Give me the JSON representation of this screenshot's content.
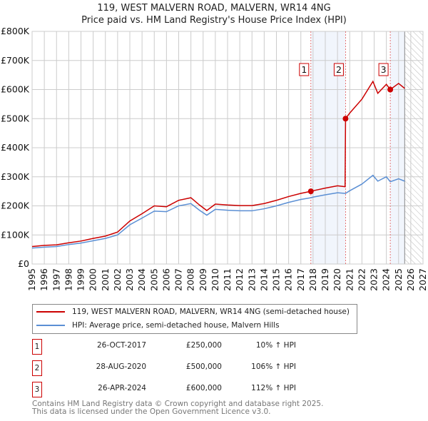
{
  "chart_data": {
    "type": "line",
    "title": "119, WEST MALVERN ROAD, MALVERN, WR14 4NG",
    "subtitle": "Price paid vs. HM Land Registry's House Price Index (HPI)",
    "xlim": [
      1995,
      2027
    ],
    "ylim": [
      0,
      800000
    ],
    "y_ticks": [
      {
        "v": 0,
        "label": "£0"
      },
      {
        "v": 100000,
        "label": "£100K"
      },
      {
        "v": 200000,
        "label": "£200K"
      },
      {
        "v": 300000,
        "label": "£300K"
      },
      {
        "v": 400000,
        "label": "£400K"
      },
      {
        "v": 500000,
        "label": "£500K"
      },
      {
        "v": 600000,
        "label": "£600K"
      },
      {
        "v": 700000,
        "label": "£700K"
      },
      {
        "v": 800000,
        "label": "£800K"
      }
    ],
    "x_ticks": [
      "1995",
      "1996",
      "1997",
      "1998",
      "1999",
      "2000",
      "2001",
      "2002",
      "2003",
      "2004",
      "2005",
      "2006",
      "2007",
      "2008",
      "2009",
      "2010",
      "2011",
      "2012",
      "2013",
      "2014",
      "2015",
      "2016",
      "2017",
      "2018",
      "2019",
      "2020",
      "2021",
      "2022",
      "2023",
      "2024",
      "2025",
      "2026",
      "2027"
    ],
    "grid": true,
    "shaded_periods": [
      [
        2017.82,
        2020.66
      ],
      [
        2024.32,
        2025.5
      ]
    ],
    "forecast_hatch": [
      2025.5,
      2027
    ],
    "x": [
      1995,
      1996,
      1997,
      1998,
      1999,
      2000,
      2001,
      2002,
      2003,
      2004,
      2005,
      2006,
      2007,
      2008,
      2008.7,
      2009.3,
      2010,
      2011,
      2012,
      2013,
      2014,
      2015,
      2016,
      2017,
      2017.82,
      2018,
      2019,
      2020,
      2020.62,
      2020.66,
      2021,
      2022,
      2022.9,
      2023.3,
      2024,
      2024.32,
      2025,
      2025.5
    ],
    "series": [
      {
        "name": "119, WEST MALVERN ROAD, MALVERN, WR14 4NG (semi-detached house)",
        "color": "#cc0000",
        "values": [
          60000,
          64000,
          66000,
          73000,
          79000,
          88000,
          96000,
          110000,
          148000,
          173000,
          200000,
          197000,
          219000,
          228000,
          203000,
          184000,
          206000,
          203000,
          201000,
          201000,
          208000,
          219000,
          232000,
          243000,
          250000,
          252000,
          261000,
          269000,
          266000,
          500000,
          519000,
          567000,
          628000,
          587000,
          618000,
          600000,
          621000,
          604000
        ]
      },
      {
        "name": "HPI: Average price, semi-detached house, Malvern Hills",
        "color": "#5b8fd4",
        "values": [
          55000,
          58000,
          60000,
          67000,
          72000,
          80000,
          88000,
          100000,
          135000,
          158000,
          182000,
          180000,
          200000,
          208000,
          185000,
          168000,
          188000,
          185000,
          183000,
          183000,
          190000,
          200000,
          212000,
          222000,
          228000,
          230000,
          238000,
          245000,
          243000,
          243000,
          252000,
          275000,
          305000,
          285000,
          300000,
          283000,
          293000,
          285000
        ]
      }
    ],
    "sales": [
      {
        "n": "1",
        "x": 2017.82,
        "y": 250000
      },
      {
        "n": "2",
        "x": 2020.66,
        "y": 500000
      },
      {
        "n": "3",
        "x": 2024.32,
        "y": 600000
      }
    ],
    "legend_placement": "below"
  },
  "table": [
    {
      "n": "1",
      "date": "26-OCT-2017",
      "price": "£250,000",
      "hpi": "10% ↑ HPI"
    },
    {
      "n": "2",
      "date": "28-AUG-2020",
      "price": "£500,000",
      "hpi": "106% ↑ HPI"
    },
    {
      "n": "3",
      "date": "26-APR-2024",
      "price": "£600,000",
      "hpi": "112% ↑ HPI"
    }
  ],
  "footer": {
    "line1": "Contains HM Land Registry data © Crown copyright and database right 2025.",
    "line2": "This data is licensed under the Open Government Licence v3.0."
  }
}
